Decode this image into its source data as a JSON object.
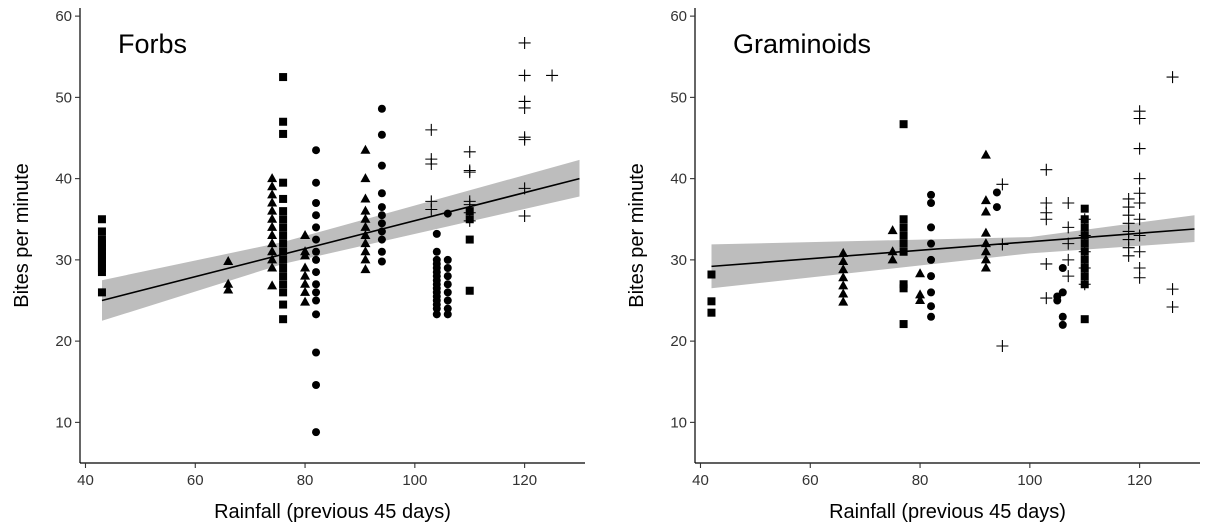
{
  "chart_data": [
    {
      "type": "scatter",
      "title": "Forbs",
      "xlabel": "Rainfall (previous 45 days)",
      "ylabel": "Bites per minute",
      "xlim": [
        39,
        131
      ],
      "ylim": [
        5,
        61
      ],
      "xticks": [
        40,
        60,
        80,
        100,
        120
      ],
      "yticks": [
        10,
        20,
        30,
        40,
        50,
        60
      ],
      "grid": false,
      "colors": {
        "points": "#000000",
        "trend": "#000000",
        "band": "#bdbdbd"
      },
      "trend_line": {
        "x": [
          43,
          130
        ],
        "y": [
          25.0,
          40.0
        ]
      },
      "confidence_band": {
        "x": [
          43,
          76,
          130
        ],
        "lower": [
          22.5,
          29.5,
          37.8
        ],
        "upper": [
          27.5,
          32.2,
          42.3
        ]
      },
      "series": [
        {
          "marker": "square",
          "points": [
            [
              43,
              35
            ],
            [
              43,
              33.5
            ],
            [
              43,
              32.5
            ],
            [
              43,
              32
            ],
            [
              43,
              31.5
            ],
            [
              43,
              31
            ],
            [
              43,
              30.5
            ],
            [
              43,
              30
            ],
            [
              43,
              29.5
            ],
            [
              43,
              29
            ],
            [
              43,
              28.5
            ],
            [
              43,
              26
            ],
            [
              76,
              52.5
            ],
            [
              76,
              47
            ],
            [
              76,
              45.5
            ],
            [
              76,
              39.5
            ],
            [
              76,
              37.5
            ],
            [
              76,
              36
            ],
            [
              76,
              35
            ],
            [
              76,
              34
            ],
            [
              76,
              33
            ],
            [
              76,
              32
            ],
            [
              76,
              31
            ],
            [
              76,
              30
            ],
            [
              76,
              29
            ],
            [
              76,
              28
            ],
            [
              76,
              27
            ],
            [
              76,
              26
            ],
            [
              76,
              24.5
            ],
            [
              76,
              22.7
            ],
            [
              110,
              36
            ],
            [
              110,
              35
            ],
            [
              110,
              32.5
            ],
            [
              110,
              26.2
            ]
          ]
        },
        {
          "marker": "triangle",
          "points": [
            [
              66,
              29.8
            ],
            [
              66,
              27
            ],
            [
              66,
              26.3
            ],
            [
              74,
              40
            ],
            [
              74,
              39
            ],
            [
              74,
              38
            ],
            [
              74,
              37
            ],
            [
              74,
              36
            ],
            [
              74,
              35
            ],
            [
              74,
              34
            ],
            [
              74,
              33
            ],
            [
              74,
              32
            ],
            [
              74,
              31
            ],
            [
              74,
              30
            ],
            [
              74,
              29
            ],
            [
              74,
              26.8
            ],
            [
              80,
              33
            ],
            [
              80,
              31
            ],
            [
              80,
              30.5
            ],
            [
              80,
              29
            ],
            [
              80,
              28
            ],
            [
              80,
              27
            ],
            [
              80,
              26
            ],
            [
              80,
              24.8
            ],
            [
              91,
              43.5
            ],
            [
              91,
              40
            ],
            [
              91,
              37.5
            ],
            [
              91,
              36
            ],
            [
              91,
              35
            ],
            [
              91,
              34
            ],
            [
              91,
              33
            ],
            [
              91,
              32
            ],
            [
              91,
              31
            ],
            [
              91,
              30
            ],
            [
              91,
              28.8
            ]
          ]
        },
        {
          "marker": "circle",
          "points": [
            [
              82,
              43.5
            ],
            [
              82,
              39.5
            ],
            [
              82,
              37
            ],
            [
              82,
              35.5
            ],
            [
              82,
              34
            ],
            [
              82,
              32.5
            ],
            [
              82,
              31
            ],
            [
              82,
              30
            ],
            [
              82,
              28.5
            ],
            [
              82,
              27
            ],
            [
              82,
              26
            ],
            [
              82,
              25
            ],
            [
              82,
              23.3
            ],
            [
              82,
              18.6
            ],
            [
              82,
              14.6
            ],
            [
              82,
              8.8
            ],
            [
              94,
              48.6
            ],
            [
              94,
              45.4
            ],
            [
              94,
              41.6
            ],
            [
              94,
              38.2
            ],
            [
              94,
              36.5
            ],
            [
              94,
              35.5
            ],
            [
              94,
              34.5
            ],
            [
              94,
              33.5
            ],
            [
              94,
              32.5
            ],
            [
              94,
              31
            ],
            [
              94,
              29.8
            ],
            [
              104,
              33.2
            ],
            [
              104,
              31
            ],
            [
              104,
              30
            ],
            [
              104,
              29.5
            ],
            [
              104,
              29
            ],
            [
              104,
              28.5
            ],
            [
              104,
              28
            ],
            [
              104,
              27.5
            ],
            [
              104,
              27
            ],
            [
              104,
              26.5
            ],
            [
              104,
              26
            ],
            [
              104,
              25.5
            ],
            [
              104,
              25
            ],
            [
              104,
              24.5
            ],
            [
              104,
              24
            ],
            [
              104,
              23.3
            ],
            [
              106,
              35.7
            ],
            [
              106,
              30
            ],
            [
              106,
              29
            ],
            [
              106,
              28
            ],
            [
              106,
              27
            ],
            [
              106,
              26
            ],
            [
              106,
              25
            ],
            [
              106,
              24
            ],
            [
              106,
              23.3
            ]
          ]
        },
        {
          "marker": "plus",
          "points": [
            [
              103,
              46
            ],
            [
              103,
              42.4
            ],
            [
              103,
              41.8
            ],
            [
              103,
              37.2
            ],
            [
              103,
              36.2
            ],
            [
              110,
              43.3
            ],
            [
              110,
              41
            ],
            [
              110,
              40.8
            ],
            [
              110,
              37.2
            ],
            [
              110,
              36.8
            ],
            [
              110,
              35.8
            ],
            [
              110,
              34.8
            ],
            [
              120,
              56.7
            ],
            [
              120,
              52.7
            ],
            [
              120,
              49.5
            ],
            [
              120,
              48.7
            ],
            [
              120,
              45.1
            ],
            [
              120,
              44.8
            ],
            [
              120,
              38.8
            ],
            [
              120,
              35.4
            ],
            [
              125,
              52.7
            ]
          ]
        }
      ]
    },
    {
      "type": "scatter",
      "title": "Graminoids",
      "xlabel": "Rainfall (previous 45 days)",
      "ylabel": "Bites per minute",
      "xlim": [
        39,
        131
      ],
      "ylim": [
        5,
        61
      ],
      "xticks": [
        40,
        60,
        80,
        100,
        120
      ],
      "yticks": [
        10,
        20,
        30,
        40,
        50,
        60
      ],
      "grid": false,
      "colors": {
        "points": "#000000",
        "trend": "#000000",
        "band": "#bdbdbd"
      },
      "trend_line": {
        "x": [
          42,
          130
        ],
        "y": [
          29.2,
          33.8
        ]
      },
      "confidence_band": {
        "x": [
          42,
          100,
          130
        ],
        "lower": [
          26.5,
          30.8,
          32.2
        ],
        "upper": [
          31.9,
          32.8,
          35.5
        ]
      },
      "series": [
        {
          "marker": "square",
          "points": [
            [
              42,
              28.2
            ],
            [
              42,
              24.9
            ],
            [
              42,
              23.5
            ],
            [
              77,
              46.7
            ],
            [
              77,
              35
            ],
            [
              77,
              34
            ],
            [
              77,
              33
            ],
            [
              77,
              32
            ],
            [
              77,
              31
            ],
            [
              77,
              27
            ],
            [
              77,
              26.5
            ],
            [
              77,
              22.1
            ],
            [
              110,
              36.3
            ],
            [
              110,
              35
            ],
            [
              110,
              34
            ],
            [
              110,
              33
            ],
            [
              110,
              32
            ],
            [
              110,
              31
            ],
            [
              110,
              30
            ],
            [
              110,
              29
            ],
            [
              110,
              28
            ],
            [
              110,
              27
            ],
            [
              110,
              22.7
            ]
          ]
        },
        {
          "marker": "triangle",
          "points": [
            [
              66,
              30.8
            ],
            [
              66,
              29.8
            ],
            [
              66,
              28.8
            ],
            [
              66,
              27.8
            ],
            [
              66,
              26.8
            ],
            [
              66,
              25.8
            ],
            [
              66,
              24.8
            ],
            [
              75,
              33.6
            ],
            [
              75,
              31
            ],
            [
              75,
              30
            ],
            [
              80,
              28.3
            ],
            [
              80,
              25.7
            ],
            [
              80,
              25
            ],
            [
              92,
              42.9
            ],
            [
              92,
              37.3
            ],
            [
              92,
              35.9
            ],
            [
              92,
              33.3
            ],
            [
              92,
              32
            ],
            [
              92,
              31
            ],
            [
              92,
              30
            ],
            [
              92,
              29
            ]
          ]
        },
        {
          "marker": "circle",
          "points": [
            [
              82,
              38
            ],
            [
              82,
              37
            ],
            [
              82,
              34
            ],
            [
              82,
              32
            ],
            [
              82,
              30
            ],
            [
              82,
              28
            ],
            [
              82,
              26
            ],
            [
              82,
              24.3
            ],
            [
              82,
              23
            ],
            [
              94,
              38.3
            ],
            [
              94,
              36.5
            ],
            [
              105,
              25.5
            ],
            [
              105,
              25
            ],
            [
              106,
              29
            ],
            [
              106,
              26
            ],
            [
              106,
              23
            ],
            [
              106,
              22
            ]
          ]
        },
        {
          "marker": "plus",
          "points": [
            [
              95,
              39.3
            ],
            [
              95,
              31.9
            ],
            [
              95,
              19.4
            ],
            [
              103,
              41.1
            ],
            [
              103,
              37
            ],
            [
              103,
              35.8
            ],
            [
              103,
              35
            ],
            [
              103,
              29.5
            ],
            [
              103,
              25.3
            ],
            [
              107,
              37
            ],
            [
              107,
              34
            ],
            [
              107,
              32
            ],
            [
              107,
              30
            ],
            [
              107,
              28
            ],
            [
              110,
              35
            ],
            [
              110,
              33
            ],
            [
              110,
              31
            ],
            [
              110,
              29
            ],
            [
              110,
              27
            ],
            [
              118,
              37.5
            ],
            [
              118,
              36.5
            ],
            [
              118,
              35.5
            ],
            [
              118,
              34.5
            ],
            [
              118,
              33.5
            ],
            [
              118,
              32.5
            ],
            [
              118,
              31.5
            ],
            [
              118,
              30.5
            ],
            [
              120,
              48.3
            ],
            [
              120,
              47.4
            ],
            [
              120,
              43.7
            ],
            [
              120,
              40
            ],
            [
              120,
              38.2
            ],
            [
              120,
              37
            ],
            [
              120,
              35
            ],
            [
              120,
              33
            ],
            [
              120,
              31
            ],
            [
              120,
              29
            ],
            [
              120,
              27.8
            ],
            [
              126,
              52.5
            ],
            [
              126,
              26.4
            ],
            [
              126,
              24.2
            ]
          ]
        }
      ]
    }
  ]
}
